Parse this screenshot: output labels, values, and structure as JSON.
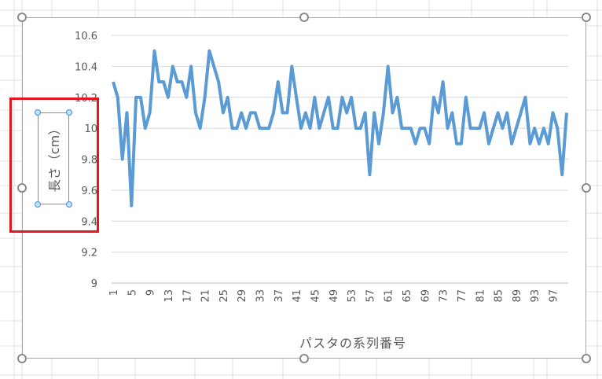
{
  "chart_data": {
    "type": "line",
    "xlabel": "パスタの系列番号",
    "ylabel": "長さ（cm）",
    "ylim": [
      9,
      10.6
    ],
    "yticks": [
      "9",
      "9.2",
      "9.4",
      "9.6",
      "9.8",
      "10",
      "10.2",
      "10.4",
      "10.6"
    ],
    "xticks": [
      "1",
      "5",
      "9",
      "13",
      "17",
      "21",
      "25",
      "29",
      "33",
      "37",
      "41",
      "45",
      "49",
      "53",
      "57",
      "61",
      "65",
      "69",
      "73",
      "77",
      "81",
      "85",
      "89",
      "93",
      "97"
    ],
    "x_start": 1,
    "x_end": 100,
    "grid": true,
    "line_color": "#5b9bd5",
    "values": [
      10.3,
      10.2,
      9.8,
      10.1,
      9.5,
      10.2,
      10.2,
      10.0,
      10.1,
      10.5,
      10.3,
      10.3,
      10.2,
      10.4,
      10.3,
      10.3,
      10.2,
      10.4,
      10.1,
      10.0,
      10.2,
      10.5,
      10.4,
      10.3,
      10.1,
      10.2,
      10.0,
      10.0,
      10.1,
      10.0,
      10.1,
      10.1,
      10.0,
      10.0,
      10.0,
      10.1,
      10.3,
      10.1,
      10.1,
      10.4,
      10.2,
      10.0,
      10.1,
      10.0,
      10.2,
      10.0,
      10.1,
      10.2,
      10.0,
      10.0,
      10.2,
      10.1,
      10.2,
      10.0,
      10.0,
      10.1,
      9.7,
      10.1,
      9.9,
      10.1,
      10.4,
      10.1,
      10.2,
      10.0,
      10.0,
      10.0,
      9.9,
      10.0,
      10.0,
      9.9,
      10.2,
      10.1,
      10.3,
      10.0,
      10.1,
      9.9,
      9.9,
      10.2,
      10.0,
      10.0,
      10.0,
      10.1,
      9.9,
      10.0,
      10.1,
      10.0,
      10.1,
      9.9,
      10.0,
      10.1,
      10.2,
      9.9,
      10.0,
      9.9,
      10.0,
      9.9,
      10.1,
      10.0,
      9.7,
      10.1
    ]
  },
  "colors": {
    "highlight": "#e4151f",
    "grid": "#d9d9d9",
    "text": "#595959"
  }
}
